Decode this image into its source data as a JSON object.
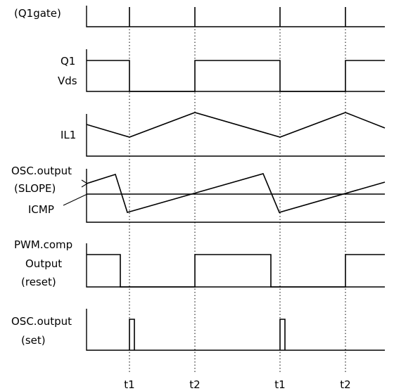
{
  "signals": {
    "q1gate": {
      "label": "(Q1gate)"
    },
    "q1vds": {
      "label_line1": "Q1",
      "label_line2": "Vds"
    },
    "il1": {
      "label": "IL1"
    },
    "osc_slope": {
      "label_line1": "OSC.output",
      "label_line2": "(SLOPE)"
    },
    "icmp": {
      "label": "ICMP"
    },
    "pwm": {
      "label_line1": "PWM.comp",
      "label_line2": "Output",
      "label_line3": "(reset)"
    },
    "osc_set": {
      "label_line1": "OSC.output",
      "label_line2": "(set)"
    }
  },
  "time_markers": [
    "t1",
    "t2",
    "t1",
    "t2"
  ]
}
